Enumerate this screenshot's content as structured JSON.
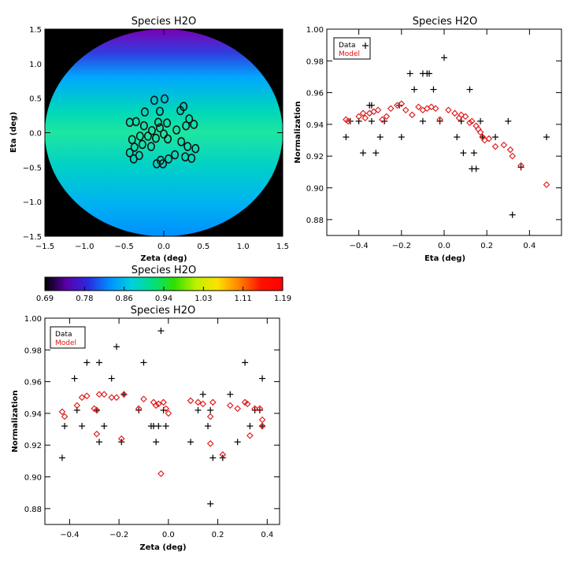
{
  "chart_data": [
    {
      "id": "map",
      "type": "heatmap",
      "title": "Species H2O",
      "xlabel": "Zeta (deg)",
      "ylabel": "Eta (deg)",
      "xlim": [
        -1.5,
        1.5
      ],
      "ylim": [
        -1.5,
        1.5
      ],
      "xticks": [
        -1.5,
        -1.0,
        -0.5,
        0.0,
        0.5,
        1.0,
        1.5
      ],
      "yticks": [
        -1.5,
        -1.0,
        -0.5,
        0.0,
        0.5,
        1.0,
        1.5
      ],
      "xtick_labels": [
        "−1.5",
        "−1.0",
        "−0.5",
        "0.0",
        "0.5",
        "1.0",
        "1.5"
      ],
      "ytick_labels": [
        "−1.5",
        "−1.0",
        "−0.5",
        "0.0",
        "0.5",
        "1.0",
        "1.5"
      ],
      "field_radius_deg": 1.5,
      "background_color": "#000000",
      "band_colors": [
        {
          "eta": 1.5,
          "color": "#7a00b5"
        },
        {
          "eta": 1.15,
          "color": "#2f3fe0"
        },
        {
          "eta": 0.8,
          "color": "#00a8ff"
        },
        {
          "eta": 0.3,
          "color": "#00d8b8"
        },
        {
          "eta": 0.0,
          "color": "#1ee6a0"
        },
        {
          "eta": -0.5,
          "color": "#00d0c8"
        },
        {
          "eta": -1.0,
          "color": "#00b4f0"
        },
        {
          "eta": -1.5,
          "color": "#0090ff"
        }
      ],
      "marker_color": "#111111",
      "markers": [
        [
          -0.12,
          0.47
        ],
        [
          -0.05,
          0.31
        ],
        [
          0.01,
          0.49
        ],
        [
          0.21,
          0.32
        ],
        [
          0.25,
          0.38
        ],
        [
          -0.24,
          0.3
        ],
        [
          -0.43,
          0.15
        ],
        [
          -0.35,
          0.16
        ],
        [
          -0.25,
          0.1
        ],
        [
          -0.07,
          0.15
        ],
        [
          0.04,
          0.14
        ],
        [
          0.32,
          0.2
        ],
        [
          0.28,
          0.1
        ],
        [
          0.38,
          0.12
        ],
        [
          -0.05,
          0.07
        ],
        [
          -0.15,
          0.03
        ],
        [
          0.0,
          -0.02
        ],
        [
          0.16,
          0.04
        ],
        [
          -0.3,
          -0.05
        ],
        [
          -0.2,
          -0.05
        ],
        [
          -0.4,
          -0.1
        ],
        [
          -0.1,
          -0.08
        ],
        [
          0.05,
          -0.09
        ],
        [
          0.22,
          -0.13
        ],
        [
          -0.37,
          -0.21
        ],
        [
          -0.27,
          -0.17
        ],
        [
          -0.16,
          -0.2
        ],
        [
          0.3,
          -0.2
        ],
        [
          0.4,
          -0.23
        ],
        [
          -0.43,
          -0.29
        ],
        [
          -0.31,
          -0.33
        ],
        [
          0.14,
          -0.32
        ],
        [
          0.06,
          -0.38
        ],
        [
          -0.04,
          -0.4
        ],
        [
          -0.09,
          -0.45
        ],
        [
          0.27,
          -0.35
        ],
        [
          0.35,
          -0.37
        ],
        [
          -0.38,
          -0.38
        ],
        [
          -0.01,
          -0.45
        ]
      ]
    },
    {
      "id": "colorbar",
      "type": "heatmap",
      "title": "Species H2O",
      "vmin": 0.69,
      "vmax": 1.19,
      "tick_labels": [
        "0.69",
        "0.78",
        "0.86",
        "0.94",
        "1.03",
        "1.11",
        "1.19"
      ],
      "gradient_stops": [
        "#000000",
        "#5a00a8",
        "#2a2ae0",
        "#0090ff",
        "#00d0e0",
        "#00e080",
        "#30e000",
        "#c0f000",
        "#ffe000",
        "#ff8000",
        "#ff1000",
        "#ff0000"
      ]
    },
    {
      "id": "eta_plot",
      "type": "scatter",
      "title": "Species H2O",
      "xlabel": "Eta (deg)",
      "ylabel": "Normalization",
      "xlim": [
        -0.55,
        0.55
      ],
      "ylim": [
        0.87,
        1.0
      ],
      "xticks": [
        -0.4,
        -0.2,
        0.0,
        0.2,
        0.4
      ],
      "yticks": [
        0.88,
        0.9,
        0.92,
        0.94,
        0.96,
        0.98,
        1.0
      ],
      "xtick_labels": [
        "−0.4",
        "−0.2",
        "0.0",
        "0.2",
        "0.4"
      ],
      "ytick_labels": [
        "0.88",
        "0.90",
        "0.92",
        "0.94",
        "0.96",
        "0.98",
        "1.00"
      ],
      "legend": {
        "position": "top-left",
        "data_label": "Data",
        "model_label": "Model"
      },
      "series": [
        {
          "name": "Data",
          "marker": "plus",
          "color": "#000000",
          "points": [
            [
              -0.46,
              0.932
            ],
            [
              -0.44,
              0.942
            ],
            [
              -0.4,
              0.942
            ],
            [
              -0.38,
              0.922
            ],
            [
              -0.35,
              0.952
            ],
            [
              -0.34,
              0.952
            ],
            [
              -0.34,
              0.942
            ],
            [
              -0.32,
              0.922
            ],
            [
              -0.3,
              0.932
            ],
            [
              -0.28,
              0.942
            ],
            [
              -0.21,
              0.952
            ],
            [
              -0.2,
              0.932
            ],
            [
              -0.16,
              0.972
            ],
            [
              -0.14,
              0.962
            ],
            [
              -0.1,
              0.972
            ],
            [
              -0.08,
              0.972
            ],
            [
              -0.07,
              0.972
            ],
            [
              -0.1,
              0.942
            ],
            [
              -0.05,
              0.962
            ],
            [
              -0.02,
              0.942
            ],
            [
              0.0,
              0.982
            ],
            [
              0.06,
              0.932
            ],
            [
              0.08,
              0.942
            ],
            [
              0.09,
              0.922
            ],
            [
              0.12,
              0.962
            ],
            [
              0.13,
              0.912
            ],
            [
              0.15,
              0.912
            ],
            [
              0.14,
              0.922
            ],
            [
              0.18,
              0.932
            ],
            [
              0.17,
              0.942
            ],
            [
              0.24,
              0.932
            ],
            [
              0.3,
              0.942
            ],
            [
              0.32,
              0.883
            ],
            [
              0.36,
              0.913
            ],
            [
              0.48,
              0.932
            ]
          ]
        },
        {
          "name": "Model",
          "marker": "diamond",
          "color": "#e01010",
          "points": [
            [
              -0.46,
              0.943
            ],
            [
              -0.45,
              0.942
            ],
            [
              -0.4,
              0.945
            ],
            [
              -0.38,
              0.947
            ],
            [
              -0.37,
              0.944
            ],
            [
              -0.35,
              0.947
            ],
            [
              -0.33,
              0.948
            ],
            [
              -0.31,
              0.949
            ],
            [
              -0.29,
              0.943
            ],
            [
              -0.27,
              0.945
            ],
            [
              -0.25,
              0.95
            ],
            [
              -0.22,
              0.952
            ],
            [
              -0.2,
              0.953
            ],
            [
              -0.18,
              0.949
            ],
            [
              -0.15,
              0.946
            ],
            [
              -0.12,
              0.951
            ],
            [
              -0.1,
              0.949
            ],
            [
              -0.08,
              0.95
            ],
            [
              -0.06,
              0.951
            ],
            [
              -0.04,
              0.95
            ],
            [
              -0.02,
              0.943
            ],
            [
              0.02,
              0.949
            ],
            [
              0.05,
              0.947
            ],
            [
              0.07,
              0.944
            ],
            [
              0.08,
              0.946
            ],
            [
              0.1,
              0.945
            ],
            [
              0.12,
              0.941
            ],
            [
              0.13,
              0.942
            ],
            [
              0.15,
              0.939
            ],
            [
              0.16,
              0.937
            ],
            [
              0.17,
              0.935
            ],
            [
              0.18,
              0.932
            ],
            [
              0.19,
              0.93
            ],
            [
              0.21,
              0.931
            ],
            [
              0.24,
              0.926
            ],
            [
              0.28,
              0.927
            ],
            [
              0.31,
              0.924
            ],
            [
              0.32,
              0.92
            ],
            [
              0.36,
              0.914
            ],
            [
              0.48,
              0.902
            ]
          ]
        }
      ]
    },
    {
      "id": "zeta_plot",
      "type": "scatter",
      "title": "Species H2O",
      "xlabel": "Zeta (deg)",
      "ylabel": "Normalization",
      "xlim": [
        -0.5,
        0.45
      ],
      "ylim": [
        0.87,
        1.0
      ],
      "xticks": [
        -0.4,
        -0.2,
        0.0,
        0.2,
        0.4
      ],
      "yticks": [
        0.88,
        0.9,
        0.92,
        0.94,
        0.96,
        0.98,
        1.0
      ],
      "xtick_labels": [
        "−0.4",
        "−0.2",
        "0.0",
        "0.2",
        "0.4"
      ],
      "ytick_labels": [
        "0.88",
        "0.90",
        "0.92",
        "0.94",
        "0.96",
        "0.98",
        "1.00"
      ],
      "legend": {
        "position": "top-left",
        "data_label": "Data",
        "model_label": "Model"
      },
      "series": [
        {
          "name": "Data",
          "marker": "plus",
          "color": "#000000",
          "points": [
            [
              -0.43,
              0.912
            ],
            [
              -0.42,
              0.932
            ],
            [
              -0.38,
              0.962
            ],
            [
              -0.37,
              0.942
            ],
            [
              -0.35,
              0.932
            ],
            [
              -0.33,
              0.972
            ],
            [
              -0.29,
              0.942
            ],
            [
              -0.28,
              0.922
            ],
            [
              -0.28,
              0.972
            ],
            [
              -0.26,
              0.932
            ],
            [
              -0.23,
              0.962
            ],
            [
              -0.21,
              0.982
            ],
            [
              -0.19,
              0.922
            ],
            [
              -0.18,
              0.952
            ],
            [
              -0.12,
              0.942
            ],
            [
              -0.1,
              0.972
            ],
            [
              -0.07,
              0.932
            ],
            [
              -0.06,
              0.932
            ],
            [
              -0.05,
              0.922
            ],
            [
              -0.04,
              0.932
            ],
            [
              -0.03,
              0.992
            ],
            [
              -0.02,
              0.942
            ],
            [
              -0.01,
              0.932
            ],
            [
              0.09,
              0.922
            ],
            [
              0.12,
              0.942
            ],
            [
              0.14,
              0.952
            ],
            [
              0.16,
              0.932
            ],
            [
              0.17,
              0.942
            ],
            [
              0.17,
              0.883
            ],
            [
              0.18,
              0.912
            ],
            [
              0.22,
              0.912
            ],
            [
              0.25,
              0.952
            ],
            [
              0.28,
              0.922
            ],
            [
              0.31,
              0.972
            ],
            [
              0.33,
              0.932
            ],
            [
              0.35,
              0.942
            ],
            [
              0.37,
              0.942
            ],
            [
              0.38,
              0.962
            ],
            [
              0.38,
              0.932
            ]
          ]
        },
        {
          "name": "Model",
          "marker": "diamond",
          "color": "#e01010",
          "points": [
            [
              -0.43,
              0.941
            ],
            [
              -0.42,
              0.938
            ],
            [
              -0.37,
              0.945
            ],
            [
              -0.35,
              0.95
            ],
            [
              -0.33,
              0.951
            ],
            [
              -0.3,
              0.943
            ],
            [
              -0.29,
              0.927
            ],
            [
              -0.29,
              0.942
            ],
            [
              -0.28,
              0.952
            ],
            [
              -0.26,
              0.952
            ],
            [
              -0.23,
              0.95
            ],
            [
              -0.21,
              0.95
            ],
            [
              -0.19,
              0.924
            ],
            [
              -0.18,
              0.952
            ],
            [
              -0.12,
              0.943
            ],
            [
              -0.1,
              0.949
            ],
            [
              -0.06,
              0.947
            ],
            [
              -0.05,
              0.945
            ],
            [
              -0.04,
              0.946
            ],
            [
              -0.03,
              0.902
            ],
            [
              -0.02,
              0.947
            ],
            [
              -0.01,
              0.943
            ],
            [
              0.0,
              0.94
            ],
            [
              0.09,
              0.948
            ],
            [
              0.12,
              0.947
            ],
            [
              0.14,
              0.946
            ],
            [
              0.17,
              0.921
            ],
            [
              0.17,
              0.938
            ],
            [
              0.18,
              0.947
            ],
            [
              0.22,
              0.914
            ],
            [
              0.25,
              0.945
            ],
            [
              0.28,
              0.943
            ],
            [
              0.31,
              0.947
            ],
            [
              0.32,
              0.946
            ],
            [
              0.33,
              0.926
            ],
            [
              0.35,
              0.943
            ],
            [
              0.37,
              0.943
            ],
            [
              0.38,
              0.936
            ],
            [
              0.38,
              0.932
            ]
          ]
        }
      ]
    }
  ]
}
